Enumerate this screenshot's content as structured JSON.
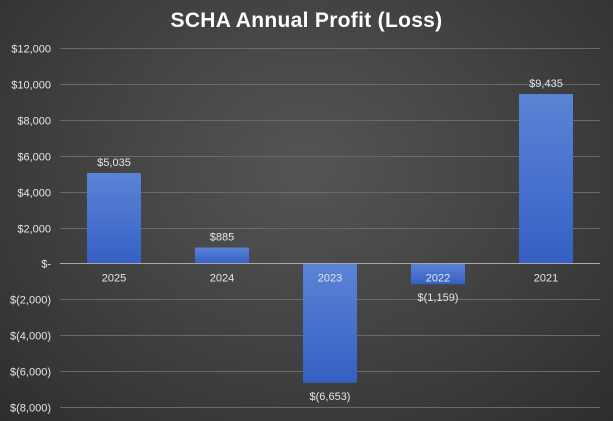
{
  "chart_data": {
    "type": "bar",
    "title": "SCHA Annual Profit (Loss)",
    "xlabel": "",
    "ylabel": "",
    "categories": [
      "2025",
      "2024",
      "2023",
      "2022",
      "2021"
    ],
    "values": [
      5035,
      885,
      -6653,
      -1159,
      9435
    ],
    "data_labels": [
      "$5,035",
      "$885",
      "$(6,653)",
      "$(1,159)",
      "$9,435"
    ],
    "ylim": [
      -8000,
      12000
    ],
    "yticks": [
      12000,
      10000,
      8000,
      6000,
      4000,
      2000,
      0,
      -2000,
      -4000,
      -6000,
      -8000
    ],
    "ytick_labels": [
      "$12,000",
      "$10,000",
      "$8,000",
      "$6,000",
      "$4,000",
      "$2,000",
      "$-",
      "$(2,000)",
      "$(4,000)",
      "$(6,000)",
      "$(8,000)"
    ],
    "grid": true,
    "legend": "none",
    "colors": {
      "bar_top": "#5b84d6",
      "bar_bottom": "#3560c4",
      "background": "#404040",
      "text": "#e6e6e6"
    }
  }
}
